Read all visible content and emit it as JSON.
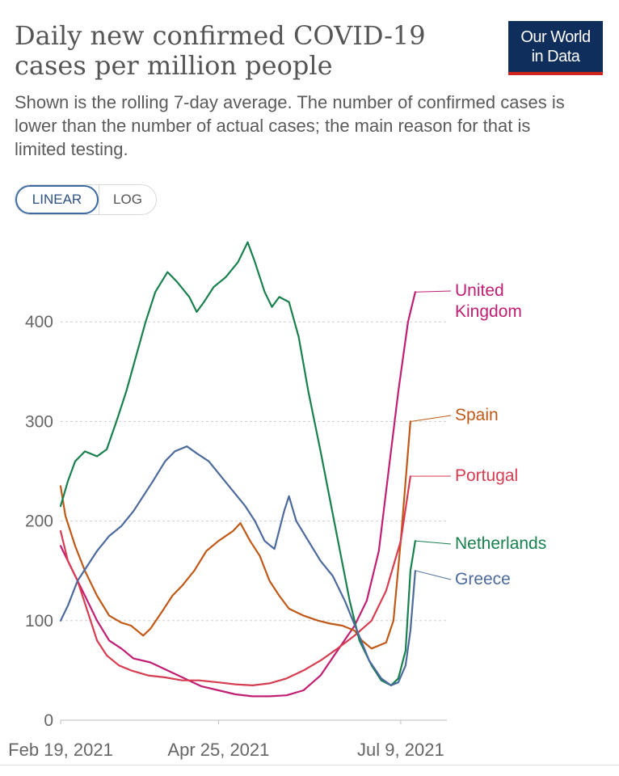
{
  "header": {
    "title": "Daily new confirmed COVID-19 cases per million people",
    "subtitle": "Shown is the rolling 7-day average. The number of confirmed cases is lower than the number of actual cases; the main reason for that is limited testing.",
    "logo_line1": "Our World",
    "logo_line2": "in Data",
    "logo_bg": "#0f2e5c",
    "logo_accent": "#ce261e"
  },
  "scale_toggle": {
    "linear_label": "LINEAR",
    "log_label": "LOG",
    "selected": "LINEAR"
  },
  "chart_data": {
    "type": "line",
    "title": "Daily new confirmed COVID-19 cases per million people",
    "x_axis": {
      "tick_labels": [
        "Feb 19, 2021",
        "Apr 25, 2021",
        "Jul 9, 2021"
      ],
      "range": [
        "2021-02-19",
        "2021-07-28"
      ]
    },
    "y_axis": {
      "ticks": [
        0,
        100,
        200,
        300,
        400
      ],
      "tick_labels": [
        "0",
        "100",
        "200",
        "300",
        "400"
      ],
      "range": [
        0,
        490
      ]
    },
    "grid": "horizontal dashed",
    "legend": "end-of-line labels (right)",
    "series": [
      {
        "name": "United Kingdom",
        "color": "#c11e73",
        "points": [
          [
            "2021-02-19",
            175
          ],
          [
            "2021-02-24",
            150
          ],
          [
            "2021-03-01",
            125
          ],
          [
            "2021-03-06",
            100
          ],
          [
            "2021-03-11",
            80
          ],
          [
            "2021-03-16",
            72
          ],
          [
            "2021-03-21",
            62
          ],
          [
            "2021-03-28",
            58
          ],
          [
            "2021-04-04",
            50
          ],
          [
            "2021-04-11",
            42
          ],
          [
            "2021-04-18",
            34
          ],
          [
            "2021-04-25",
            30
          ],
          [
            "2021-05-02",
            26
          ],
          [
            "2021-05-09",
            24
          ],
          [
            "2021-05-16",
            24
          ],
          [
            "2021-05-23",
            25
          ],
          [
            "2021-05-30",
            30
          ],
          [
            "2021-06-06",
            45
          ],
          [
            "2021-06-13",
            70
          ],
          [
            "2021-06-20",
            95
          ],
          [
            "2021-06-25",
            120
          ],
          [
            "2021-06-30",
            170
          ],
          [
            "2021-07-04",
            250
          ],
          [
            "2021-07-08",
            330
          ],
          [
            "2021-07-12",
            400
          ],
          [
            "2021-07-15",
            430
          ]
        ]
      },
      {
        "name": "Spain",
        "color": "#c05917",
        "points": [
          [
            "2021-02-19",
            235
          ],
          [
            "2021-02-21",
            205
          ],
          [
            "2021-02-25",
            175
          ],
          [
            "2021-03-01",
            150
          ],
          [
            "2021-03-06",
            125
          ],
          [
            "2021-03-11",
            105
          ],
          [
            "2021-03-16",
            98
          ],
          [
            "2021-03-20",
            95
          ],
          [
            "2021-03-25",
            85
          ],
          [
            "2021-03-28",
            92
          ],
          [
            "2021-04-02",
            110
          ],
          [
            "2021-04-06",
            125
          ],
          [
            "2021-04-10",
            135
          ],
          [
            "2021-04-15",
            150
          ],
          [
            "2021-04-20",
            170
          ],
          [
            "2021-04-25",
            180
          ],
          [
            "2021-05-01",
            190
          ],
          [
            "2021-05-04",
            198
          ],
          [
            "2021-05-08",
            180
          ],
          [
            "2021-05-12",
            165
          ],
          [
            "2021-05-16",
            140
          ],
          [
            "2021-05-20",
            125
          ],
          [
            "2021-05-24",
            112
          ],
          [
            "2021-05-30",
            105
          ],
          [
            "2021-06-05",
            100
          ],
          [
            "2021-06-10",
            97
          ],
          [
            "2021-06-15",
            95
          ],
          [
            "2021-06-20",
            90
          ],
          [
            "2021-06-23",
            80
          ],
          [
            "2021-06-27",
            72
          ],
          [
            "2021-06-30",
            75
          ],
          [
            "2021-07-03",
            78
          ],
          [
            "2021-07-06",
            100
          ],
          [
            "2021-07-09",
            180
          ],
          [
            "2021-07-13",
            300
          ]
        ]
      },
      {
        "name": "Portugal",
        "color": "#d73c50",
        "points": [
          [
            "2021-02-19",
            190
          ],
          [
            "2021-02-22",
            160
          ],
          [
            "2021-02-26",
            140
          ],
          [
            "2021-03-02",
            110
          ],
          [
            "2021-03-06",
            80
          ],
          [
            "2021-03-10",
            65
          ],
          [
            "2021-03-15",
            55
          ],
          [
            "2021-03-20",
            50
          ],
          [
            "2021-03-27",
            45
          ],
          [
            "2021-04-03",
            43
          ],
          [
            "2021-04-10",
            40
          ],
          [
            "2021-04-17",
            40
          ],
          [
            "2021-04-25",
            38
          ],
          [
            "2021-05-02",
            36
          ],
          [
            "2021-05-09",
            35
          ],
          [
            "2021-05-16",
            37
          ],
          [
            "2021-05-23",
            42
          ],
          [
            "2021-05-30",
            50
          ],
          [
            "2021-06-06",
            60
          ],
          [
            "2021-06-13",
            72
          ],
          [
            "2021-06-20",
            85
          ],
          [
            "2021-06-27",
            100
          ],
          [
            "2021-07-03",
            130
          ],
          [
            "2021-07-09",
            180
          ],
          [
            "2021-07-13",
            245
          ]
        ]
      },
      {
        "name": "Netherlands",
        "color": "#18804d",
        "points": [
          [
            "2021-02-19",
            215
          ],
          [
            "2021-02-22",
            240
          ],
          [
            "2021-02-25",
            260
          ],
          [
            "2021-03-01",
            270
          ],
          [
            "2021-03-06",
            265
          ],
          [
            "2021-03-10",
            272
          ],
          [
            "2021-03-14",
            300
          ],
          [
            "2021-03-18",
            330
          ],
          [
            "2021-03-22",
            365
          ],
          [
            "2021-03-26",
            400
          ],
          [
            "2021-03-30",
            430
          ],
          [
            "2021-04-04",
            450
          ],
          [
            "2021-04-08",
            440
          ],
          [
            "2021-04-13",
            425
          ],
          [
            "2021-04-16",
            410
          ],
          [
            "2021-04-19",
            420
          ],
          [
            "2021-04-23",
            435
          ],
          [
            "2021-04-28",
            445
          ],
          [
            "2021-05-03",
            460
          ],
          [
            "2021-05-07",
            480
          ],
          [
            "2021-05-10",
            460
          ],
          [
            "2021-05-14",
            430
          ],
          [
            "2021-05-17",
            415
          ],
          [
            "2021-05-20",
            425
          ],
          [
            "2021-05-24",
            420
          ],
          [
            "2021-05-28",
            385
          ],
          [
            "2021-06-01",
            330
          ],
          [
            "2021-06-06",
            270
          ],
          [
            "2021-06-10",
            220
          ],
          [
            "2021-06-14",
            170
          ],
          [
            "2021-06-18",
            120
          ],
          [
            "2021-06-22",
            80
          ],
          [
            "2021-06-27",
            55
          ],
          [
            "2021-07-01",
            40
          ],
          [
            "2021-07-05",
            35
          ],
          [
            "2021-07-08",
            42
          ],
          [
            "2021-07-11",
            70
          ],
          [
            "2021-07-13",
            150
          ],
          [
            "2021-07-15",
            180
          ]
        ]
      },
      {
        "name": "Greece",
        "color": "#4c6a9c",
        "points": [
          [
            "2021-02-19",
            100
          ],
          [
            "2021-02-22",
            115
          ],
          [
            "2021-02-26",
            140
          ],
          [
            "2021-03-02",
            155
          ],
          [
            "2021-03-06",
            170
          ],
          [
            "2021-03-11",
            185
          ],
          [
            "2021-03-16",
            195
          ],
          [
            "2021-03-21",
            210
          ],
          [
            "2021-03-25",
            225
          ],
          [
            "2021-03-29",
            240
          ],
          [
            "2021-04-03",
            260
          ],
          [
            "2021-04-07",
            270
          ],
          [
            "2021-04-12",
            275
          ],
          [
            "2021-04-16",
            268
          ],
          [
            "2021-04-21",
            260
          ],
          [
            "2021-04-26",
            245
          ],
          [
            "2021-05-01",
            230
          ],
          [
            "2021-05-06",
            215
          ],
          [
            "2021-05-10",
            200
          ],
          [
            "2021-05-14",
            180
          ],
          [
            "2021-05-18",
            172
          ],
          [
            "2021-05-22",
            210
          ],
          [
            "2021-05-24",
            225
          ],
          [
            "2021-05-27",
            200
          ],
          [
            "2021-06-01",
            180
          ],
          [
            "2021-06-06",
            160
          ],
          [
            "2021-06-11",
            145
          ],
          [
            "2021-06-16",
            120
          ],
          [
            "2021-06-21",
            90
          ],
          [
            "2021-06-26",
            60
          ],
          [
            "2021-07-01",
            42
          ],
          [
            "2021-07-05",
            35
          ],
          [
            "2021-07-08",
            38
          ],
          [
            "2021-07-11",
            55
          ],
          [
            "2021-07-13",
            90
          ],
          [
            "2021-07-15",
            150
          ]
        ]
      }
    ]
  }
}
